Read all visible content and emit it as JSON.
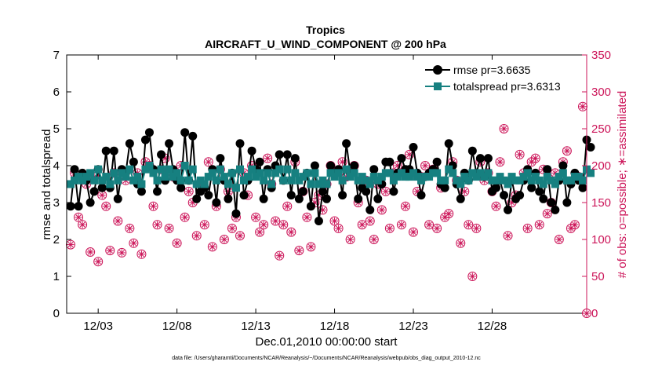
{
  "chart_data": {
    "type": "line",
    "title": "Tropics",
    "subtitle": "AIRCRAFT_U_WIND_COMPONENT @ 200 hPa",
    "xlabel": "Dec.01,2010 00:00:00 start",
    "ylabel": "rmse and totalspread",
    "ylabel_right": "# of obs: o=possible; ∗=assimilated",
    "xlim": [
      0,
      132
    ],
    "ylim": [
      0,
      7
    ],
    "ylim_right": [
      0,
      350
    ],
    "x_ticks": [
      8,
      28,
      48,
      68,
      88,
      108
    ],
    "x_tick_labels": [
      "12/03",
      "12/08",
      "12/13",
      "12/18",
      "12/23",
      "12/28"
    ],
    "y_ticks": [
      0,
      1,
      2,
      3,
      4,
      5,
      6,
      7
    ],
    "y_tick_labels": [
      "0",
      "1",
      "2",
      "3",
      "4",
      "5",
      "6",
      "7"
    ],
    "y_right_ticks": [
      0,
      50,
      100,
      150,
      200,
      250,
      300,
      350
    ],
    "y_right_tick_labels": [
      "0",
      "50",
      "100",
      "150",
      "200",
      "250",
      "300",
      "350"
    ],
    "series": [
      {
        "name": "rmse",
        "legend": "rmse pr=3.6635",
        "color": "#000000",
        "axis": "left",
        "values": [
          2.9,
          3.9,
          2.9,
          3.8,
          3.6,
          3.0,
          3.3,
          3.9,
          3.4,
          4.4,
          3.4,
          4.4,
          3.1,
          3.9,
          3.8,
          4.6,
          4.1,
          3.5,
          3.3,
          4.7,
          4.9,
          3.9,
          3.3,
          4.3,
          3.6,
          4.6,
          3.9,
          3.6,
          3.4,
          4.9,
          3.6,
          4.8,
          3.1,
          3.3,
          3.4,
          3.2,
          3.9,
          3.0,
          4.2,
          3.6,
          3.1,
          3.8,
          2.7,
          4.6,
          3.2,
          3.6,
          4.4,
          3.9,
          4.1,
          3.1,
          3.9,
          3.4,
          4.0,
          4.3,
          3.6,
          4.3,
          3.2,
          4.2,
          3.1,
          3.3,
          3.8,
          2.9,
          4.0,
          2.5,
          3.3,
          3.1,
          4.0,
          3.8,
          3.9,
          3.2,
          4.6,
          3.8,
          4.0,
          3.1,
          3.4,
          3.3,
          2.8,
          3.9,
          3.1,
          3.5,
          4.1,
          4.1,
          3.3,
          3.8,
          4.2,
          3.9,
          3.9,
          4.5,
          3.8,
          3.2,
          3.7,
          3.8,
          3.9,
          4.1,
          3.5,
          3.4,
          4.6,
          4.0,
          3.5,
          3.1,
          3.8,
          3.6,
          4.4,
          3.8,
          4.2,
          3.7,
          4.2,
          3.3,
          3.4,
          3.6,
          3.2,
          2.8,
          3.6,
          3.1,
          3.2,
          3.6,
          3.9,
          3.4,
          3.8,
          3.3,
          3.1,
          3.9,
          3.0,
          2.8,
          3.6,
          4.0,
          3.0,
          3.5,
          3.8,
          3.6,
          3.4,
          4.7,
          4.5
        ],
        "marker": "o"
      },
      {
        "name": "totalspread",
        "legend": "totalspread pr=3.6313",
        "color": "#168080",
        "axis": "left",
        "values": [
          3.5,
          3.6,
          3.7,
          3.6,
          3.7,
          3.8,
          3.6,
          3.9,
          3.6,
          3.7,
          3.5,
          3.8,
          3.6,
          3.8,
          3.7,
          3.9,
          3.6,
          3.7,
          3.5,
          3.9,
          4.0,
          3.8,
          3.6,
          3.9,
          3.7,
          3.9,
          3.7,
          3.8,
          3.6,
          4.0,
          3.6,
          3.9,
          3.5,
          3.6,
          3.5,
          3.7,
          3.8,
          3.6,
          3.9,
          3.7,
          3.5,
          3.8,
          3.4,
          3.9,
          3.6,
          3.7,
          3.9,
          3.7,
          3.8,
          3.6,
          3.8,
          3.5,
          3.8,
          3.9,
          3.6,
          3.9,
          3.6,
          3.8,
          3.6,
          3.7,
          3.8,
          3.5,
          3.8,
          3.5,
          3.6,
          3.5,
          3.8,
          3.7,
          3.8,
          3.6,
          3.9,
          3.7,
          3.8,
          3.6,
          3.7,
          3.6,
          3.5,
          3.7,
          3.6,
          3.7,
          3.8,
          3.8,
          3.6,
          3.7,
          3.8,
          3.7,
          3.7,
          3.8,
          3.7,
          3.6,
          3.7,
          3.7,
          3.8,
          3.8,
          3.6,
          3.6,
          3.9,
          3.8,
          3.6,
          3.5,
          3.7,
          3.6,
          3.8,
          3.7,
          3.8,
          3.7,
          3.8,
          3.6,
          3.6,
          3.7,
          3.6,
          3.5,
          3.7,
          3.6,
          3.6,
          3.7,
          3.8,
          3.6,
          3.7,
          3.6,
          3.5,
          3.7,
          3.6,
          3.5,
          3.7,
          3.8,
          3.6,
          3.6,
          3.7,
          3.7,
          3.6,
          3.9,
          3.8
        ],
        "marker": "s"
      },
      {
        "name": "obs possible/assimilated",
        "color": "#cc1559",
        "axis": "right",
        "values": [
          93,
          190,
          130,
          120,
          175,
          83,
          185,
          70,
          160,
          145,
          85,
          190,
          125,
          82,
          180,
          115,
          95,
          190,
          80,
          205,
          200,
          145,
          120,
          195,
          210,
          115,
          185,
          95,
          200,
          130,
          165,
          150,
          105,
          175,
          120,
          205,
          90,
          145,
          195,
          100,
          165,
          115,
          130,
          105,
          190,
          160,
          200,
          130,
          110,
          120,
          210,
          175,
          125,
          78,
          120,
          145,
          110,
          205,
          85,
          165,
          130,
          90,
          150,
          160,
          140,
          175,
          200,
          125,
          115,
          205,
          185,
          100,
          200,
          150,
          120,
          180,
          125,
          100,
          175,
          140,
          165,
          115,
          190,
          200,
          120,
          145,
          215,
          110,
          165,
          185,
          200,
          120,
          195,
          115,
          170,
          130,
          135,
          205,
          180,
          95,
          165,
          120,
          50,
          115,
          205,
          180,
          190,
          165,
          145,
          205,
          250,
          105,
          150,
          160,
          215,
          190,
          115,
          205,
          210,
          120,
          195,
          135,
          150,
          190,
          100,
          205,
          220,
          115,
          120,
          185,
          280,
          0
        ]
      }
    ],
    "legend_location": "top-right",
    "grid": false
  },
  "footnote": "data file: /Users/gharamti/Documents/NCAR/Reanalysis/~/Documents/NCAR/Reanalysis/webpub/obs_diag_output_2010-12.nc"
}
